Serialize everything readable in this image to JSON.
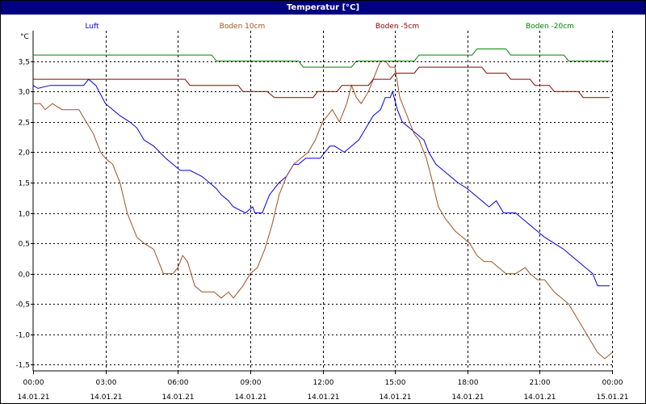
{
  "window": {
    "title": "Temperatur [°C]"
  },
  "chart_data": {
    "type": "line",
    "title": "Temperatur [°C]",
    "ylabel": "°C",
    "xlabel": "",
    "ylim": [
      -1.6,
      4.0
    ],
    "yticks": [
      -1.5,
      -1.0,
      -0.5,
      0.0,
      0.5,
      1.0,
      1.5,
      2.0,
      2.5,
      3.0,
      3.5
    ],
    "ytick_labels": [
      "-1,5",
      "-1,0",
      "-0,5",
      "0,0",
      "0,5",
      "1,0",
      "1,5",
      "2,0",
      "2,5",
      "3,0",
      "3,5"
    ],
    "xlim_hours": [
      0,
      24
    ],
    "xticks_hours": [
      0,
      3,
      6,
      9,
      12,
      15,
      18,
      21,
      24
    ],
    "xtick_labels": [
      {
        "time": "00:00",
        "date": "14.01.21"
      },
      {
        "time": "03:00",
        "date": "14.01.21"
      },
      {
        "time": "06:00",
        "date": "14.01.21"
      },
      {
        "time": "09:00",
        "date": "14.01.21"
      },
      {
        "time": "12:00",
        "date": "14.01.21"
      },
      {
        "time": "15:00",
        "date": "14.01.21"
      },
      {
        "time": "18:00",
        "date": "14.01.21"
      },
      {
        "time": "21:00",
        "date": "14.01.21"
      },
      {
        "time": "00:00",
        "date": "15.01.21"
      }
    ],
    "grid": true,
    "legend_position": "top",
    "series": [
      {
        "name": "Luft",
        "color": "#0000dd",
        "points": [
          [
            0,
            3.1
          ],
          [
            0.2,
            3.05
          ],
          [
            0.7,
            3.1
          ],
          [
            2.1,
            3.1
          ],
          [
            2.3,
            3.2
          ],
          [
            2.6,
            3.1
          ],
          [
            3.0,
            2.8
          ],
          [
            3.3,
            2.7
          ],
          [
            3.6,
            2.6
          ],
          [
            4.0,
            2.5
          ],
          [
            4.3,
            2.4
          ],
          [
            4.6,
            2.2
          ],
          [
            5.0,
            2.1
          ],
          [
            5.5,
            1.9
          ],
          [
            5.8,
            1.8
          ],
          [
            6.1,
            1.7
          ],
          [
            6.5,
            1.7
          ],
          [
            7.0,
            1.6
          ],
          [
            7.3,
            1.5
          ],
          [
            7.6,
            1.4
          ],
          [
            7.8,
            1.3
          ],
          [
            8.1,
            1.2
          ],
          [
            8.3,
            1.1
          ],
          [
            8.8,
            1.0
          ],
          [
            9.1,
            1.1
          ],
          [
            9.2,
            1.0
          ],
          [
            9.5,
            1.0
          ],
          [
            9.8,
            1.3
          ],
          [
            10.2,
            1.5
          ],
          [
            10.5,
            1.6
          ],
          [
            10.8,
            1.8
          ],
          [
            11.0,
            1.8
          ],
          [
            11.3,
            1.9
          ],
          [
            11.6,
            1.9
          ],
          [
            11.9,
            1.9
          ],
          [
            12.3,
            2.1
          ],
          [
            12.5,
            2.1
          ],
          [
            12.9,
            2.0
          ],
          [
            13.2,
            2.1
          ],
          [
            13.5,
            2.2
          ],
          [
            13.8,
            2.4
          ],
          [
            14.1,
            2.6
          ],
          [
            14.4,
            2.7
          ],
          [
            14.6,
            2.9
          ],
          [
            14.8,
            2.9
          ],
          [
            14.9,
            3.0
          ],
          [
            15.1,
            2.7
          ],
          [
            15.3,
            2.5
          ],
          [
            15.6,
            2.4
          ],
          [
            15.9,
            2.3
          ],
          [
            16.2,
            2.2
          ],
          [
            16.4,
            2.0
          ],
          [
            16.7,
            1.8
          ],
          [
            17.0,
            1.7
          ],
          [
            17.3,
            1.6
          ],
          [
            17.6,
            1.5
          ],
          [
            18.0,
            1.4
          ],
          [
            18.3,
            1.3
          ],
          [
            18.6,
            1.2
          ],
          [
            18.9,
            1.1
          ],
          [
            19.2,
            1.2
          ],
          [
            19.5,
            1.0
          ],
          [
            20.0,
            1.0
          ],
          [
            20.3,
            0.9
          ],
          [
            20.6,
            0.8
          ],
          [
            20.9,
            0.7
          ],
          [
            21.2,
            0.6
          ],
          [
            21.6,
            0.5
          ],
          [
            22.0,
            0.4
          ],
          [
            22.3,
            0.3
          ],
          [
            22.6,
            0.2
          ],
          [
            22.9,
            0.1
          ],
          [
            23.2,
            0.0
          ],
          [
            23.4,
            -0.2
          ],
          [
            23.9,
            -0.2
          ]
        ]
      },
      {
        "name": "Boden 10cm",
        "color": "#a05020",
        "points": [
          [
            0,
            2.8
          ],
          [
            0.3,
            2.8
          ],
          [
            0.5,
            2.7
          ],
          [
            0.8,
            2.8
          ],
          [
            1.2,
            2.7
          ],
          [
            1.9,
            2.7
          ],
          [
            2.2,
            2.5
          ],
          [
            2.5,
            2.3
          ],
          [
            2.8,
            2.0
          ],
          [
            3.0,
            1.9
          ],
          [
            3.3,
            1.8
          ],
          [
            3.6,
            1.5
          ],
          [
            3.9,
            1.0
          ],
          [
            4.1,
            0.8
          ],
          [
            4.3,
            0.6
          ],
          [
            4.6,
            0.5
          ],
          [
            5.0,
            0.4
          ],
          [
            5.4,
            0.0
          ],
          [
            5.8,
            0.0
          ],
          [
            6.0,
            0.1
          ],
          [
            6.2,
            0.3
          ],
          [
            6.4,
            0.2
          ],
          [
            6.7,
            -0.2
          ],
          [
            7.0,
            -0.3
          ],
          [
            7.2,
            -0.3
          ],
          [
            7.5,
            -0.3
          ],
          [
            7.8,
            -0.4
          ],
          [
            8.1,
            -0.3
          ],
          [
            8.3,
            -0.4
          ],
          [
            8.7,
            -0.2
          ],
          [
            9.0,
            0.0
          ],
          [
            9.3,
            0.1
          ],
          [
            9.6,
            0.4
          ],
          [
            9.9,
            0.8
          ],
          [
            10.2,
            1.3
          ],
          [
            10.5,
            1.6
          ],
          [
            10.8,
            1.8
          ],
          [
            11.1,
            1.9
          ],
          [
            11.4,
            2.0
          ],
          [
            11.7,
            2.2
          ],
          [
            12.0,
            2.5
          ],
          [
            12.4,
            2.7
          ],
          [
            12.7,
            2.5
          ],
          [
            13.0,
            2.8
          ],
          [
            13.2,
            3.1
          ],
          [
            13.4,
            2.9
          ],
          [
            13.6,
            2.8
          ],
          [
            13.9,
            3.0
          ],
          [
            14.1,
            3.2
          ],
          [
            14.4,
            3.5
          ],
          [
            14.6,
            3.5
          ],
          [
            14.8,
            3.4
          ],
          [
            15.0,
            3.4
          ],
          [
            15.2,
            2.9
          ],
          [
            15.5,
            2.6
          ],
          [
            15.8,
            2.3
          ],
          [
            16.0,
            2.2
          ],
          [
            16.3,
            1.9
          ],
          [
            16.5,
            1.6
          ],
          [
            16.8,
            1.1
          ],
          [
            17.1,
            0.9
          ],
          [
            17.5,
            0.7
          ],
          [
            17.8,
            0.6
          ],
          [
            18.1,
            0.5
          ],
          [
            18.4,
            0.3
          ],
          [
            18.7,
            0.2
          ],
          [
            19.0,
            0.2
          ],
          [
            19.3,
            0.1
          ],
          [
            19.6,
            0.0
          ],
          [
            20.0,
            0.0
          ],
          [
            20.4,
            0.1
          ],
          [
            20.6,
            0.0
          ],
          [
            20.9,
            -0.1
          ],
          [
            21.2,
            -0.1
          ],
          [
            21.6,
            -0.3
          ],
          [
            21.9,
            -0.4
          ],
          [
            22.2,
            -0.5
          ],
          [
            22.5,
            -0.7
          ],
          [
            22.8,
            -0.9
          ],
          [
            23.1,
            -1.1
          ],
          [
            23.4,
            -1.3
          ],
          [
            23.7,
            -1.4
          ],
          [
            24.0,
            -1.3
          ]
        ]
      },
      {
        "name": "Boden -5cm",
        "color": "#8b0000",
        "points": [
          [
            0,
            3.2
          ],
          [
            6.3,
            3.2
          ],
          [
            6.5,
            3.1
          ],
          [
            8.5,
            3.1
          ],
          [
            8.7,
            3.0
          ],
          [
            9.7,
            3.0
          ],
          [
            10.0,
            2.9
          ],
          [
            11.6,
            2.9
          ],
          [
            11.8,
            3.0
          ],
          [
            12.6,
            3.0
          ],
          [
            12.8,
            3.1
          ],
          [
            13.9,
            3.1
          ],
          [
            14.1,
            3.2
          ],
          [
            14.8,
            3.2
          ],
          [
            15.0,
            3.3
          ],
          [
            15.8,
            3.3
          ],
          [
            16.0,
            3.4
          ],
          [
            18.6,
            3.4
          ],
          [
            18.8,
            3.3
          ],
          [
            19.6,
            3.3
          ],
          [
            19.8,
            3.2
          ],
          [
            20.6,
            3.2
          ],
          [
            20.8,
            3.1
          ],
          [
            21.4,
            3.1
          ],
          [
            21.6,
            3.0
          ],
          [
            22.6,
            3.0
          ],
          [
            22.8,
            2.9
          ],
          [
            23.9,
            2.9
          ]
        ]
      },
      {
        "name": "Boden -20cm",
        "color": "#008000",
        "points": [
          [
            0,
            3.6
          ],
          [
            7.4,
            3.6
          ],
          [
            7.6,
            3.5
          ],
          [
            11.0,
            3.5
          ],
          [
            11.2,
            3.4
          ],
          [
            13.2,
            3.4
          ],
          [
            13.4,
            3.5
          ],
          [
            15.8,
            3.5
          ],
          [
            16.0,
            3.6
          ],
          [
            18.2,
            3.6
          ],
          [
            18.4,
            3.7
          ],
          [
            19.6,
            3.7
          ],
          [
            19.8,
            3.6
          ],
          [
            22.0,
            3.6
          ],
          [
            22.2,
            3.5
          ],
          [
            23.9,
            3.5
          ]
        ]
      }
    ]
  }
}
